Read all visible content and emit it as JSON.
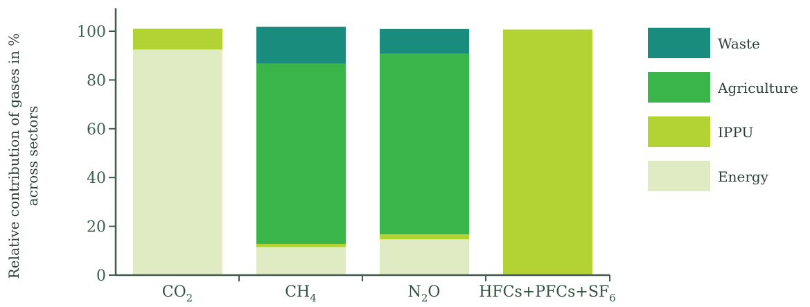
{
  "chart_data": {
    "type": "bar",
    "stacked": true,
    "ylabel_line1": "Relative contribution of gases in %",
    "ylabel_line2": "across sectors",
    "xlabel": "",
    "ylim": [
      0,
      110
    ],
    "yticks": [
      "0",
      "20",
      "40",
      "60",
      "80",
      "100"
    ],
    "categories": [
      {
        "main": "CO",
        "sub": "2"
      },
      {
        "main": "CH",
        "sub": "4"
      },
      {
        "main": "N",
        "sub": "2",
        "tail": "O"
      },
      {
        "main": "HFCs+PFCs+SF",
        "sub": "6"
      }
    ],
    "series": [
      {
        "name": "Energy",
        "color": "#e0ebc4",
        "values": [
          92.5,
          11.5,
          14.7,
          0
        ]
      },
      {
        "name": "IPPU",
        "color": "#b3d334",
        "values": [
          8.5,
          1.3,
          2,
          100.7
        ]
      },
      {
        "name": "Agriculture",
        "color": "#39b54a",
        "values": [
          0,
          74,
          74,
          0
        ]
      },
      {
        "name": "Waste",
        "color": "#1a8c7e",
        "values": [
          0,
          15,
          10.2,
          0
        ]
      }
    ],
    "legend_order": [
      "Waste",
      "Agriculture",
      "IPPU",
      "Energy"
    ],
    "legend_position": "right",
    "grid": false
  }
}
